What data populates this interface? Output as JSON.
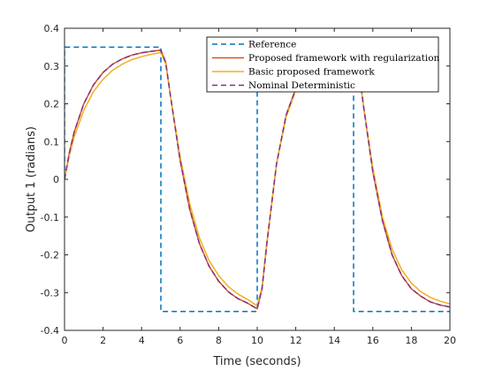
{
  "chart_data": {
    "type": "line",
    "xlabel": "Time (seconds)",
    "ylabel": "Output 1 (radians)",
    "xlim": [
      0,
      20
    ],
    "ylim": [
      -0.4,
      0.4
    ],
    "xticks": [
      0,
      2,
      4,
      6,
      8,
      10,
      12,
      14,
      16,
      18,
      20
    ],
    "xtick_labels": [
      "0",
      "2",
      "4",
      "6",
      "8",
      "10",
      "12",
      "14",
      "16",
      "18",
      "20"
    ],
    "yticks": [
      -0.4,
      -0.3,
      -0.2,
      -0.1,
      0,
      0.1,
      0.2,
      0.3,
      0.4
    ],
    "ytick_labels": [
      "-0.4",
      "-0.3",
      "-0.2",
      "-0.1",
      "0",
      "0.1",
      "0.2",
      "0.3",
      "0.4"
    ],
    "grid": false,
    "legend_position": "top-right",
    "series": [
      {
        "name": "Reference",
        "color": "#0072BD",
        "dash": "dashed",
        "x": [
          0,
          0,
          5,
          5,
          10,
          10,
          15,
          15,
          20
        ],
        "y": [
          0,
          0.35,
          0.35,
          -0.35,
          -0.35,
          0.35,
          0.35,
          -0.35,
          -0.35
        ]
      },
      {
        "name": "Proposed framework with regularization",
        "color": "#D95319",
        "dash": "solid",
        "x": [
          0,
          0.25,
          0.5,
          1,
          1.5,
          2,
          2.5,
          3,
          3.5,
          4,
          4.5,
          5,
          5.25,
          5.5,
          6,
          6.5,
          7,
          7.5,
          8,
          8.5,
          9,
          9.5,
          10,
          10.25,
          10.5,
          11,
          11.5,
          12,
          12.5,
          13,
          13.5,
          14,
          14.5,
          15,
          15.25,
          15.5,
          16,
          16.5,
          17,
          17.5,
          18,
          18.5,
          19,
          19.5,
          20
        ],
        "y": [
          0,
          0.07,
          0.125,
          0.2,
          0.25,
          0.283,
          0.305,
          0.319,
          0.329,
          0.335,
          0.339,
          0.342,
          0.31,
          0.22,
          0.05,
          -0.08,
          -0.17,
          -0.23,
          -0.27,
          -0.298,
          -0.316,
          -0.328,
          -0.343,
          -0.29,
          -0.17,
          0.04,
          0.17,
          0.24,
          0.285,
          0.312,
          0.328,
          0.336,
          0.34,
          0.342,
          0.3,
          0.2,
          0.02,
          -0.11,
          -0.2,
          -0.255,
          -0.29,
          -0.31,
          -0.325,
          -0.333,
          -0.338
        ]
      },
      {
        "name": "Basic proposed framework",
        "color": "#EDB120",
        "dash": "solid",
        "x": [
          0,
          0.25,
          0.5,
          1,
          1.5,
          2,
          2.5,
          3,
          3.5,
          4,
          4.5,
          5,
          5.25,
          5.5,
          6,
          6.5,
          7,
          7.5,
          8,
          8.5,
          9,
          9.5,
          10,
          10.25,
          10.5,
          11,
          11.5,
          12,
          12.5,
          13,
          13.5,
          14,
          14.5,
          15,
          15.25,
          15.5,
          16,
          16.5,
          17,
          17.5,
          18,
          18.5,
          19,
          19.5,
          20
        ],
        "y": [
          0,
          0.062,
          0.112,
          0.183,
          0.232,
          0.265,
          0.289,
          0.305,
          0.317,
          0.325,
          0.331,
          0.336,
          0.305,
          0.22,
          0.06,
          -0.065,
          -0.155,
          -0.215,
          -0.255,
          -0.284,
          -0.304,
          -0.318,
          -0.335,
          -0.285,
          -0.165,
          0.04,
          0.165,
          0.235,
          0.278,
          0.303,
          0.318,
          0.327,
          0.332,
          0.336,
          0.3,
          0.2,
          0.03,
          -0.1,
          -0.185,
          -0.24,
          -0.275,
          -0.298,
          -0.313,
          -0.323,
          -0.33
        ]
      },
      {
        "name": "Nominal Deterministic",
        "color": "#7E2F8E",
        "dash": "dashed",
        "x": [
          0,
          0.25,
          0.5,
          1,
          1.5,
          2,
          2.5,
          3,
          3.5,
          4,
          4.5,
          5,
          5.25,
          5.5,
          6,
          6.5,
          7,
          7.5,
          8,
          8.5,
          9,
          9.5,
          10,
          10.25,
          10.5,
          11,
          11.5,
          12,
          12.5,
          13,
          13.5,
          14,
          14.5,
          15,
          15.25,
          15.5,
          16,
          16.5,
          17,
          17.5,
          18,
          18.5,
          19,
          19.5,
          20
        ],
        "y": [
          0,
          0.07,
          0.125,
          0.2,
          0.25,
          0.283,
          0.305,
          0.319,
          0.329,
          0.335,
          0.339,
          0.342,
          0.31,
          0.22,
          0.05,
          -0.08,
          -0.17,
          -0.23,
          -0.27,
          -0.298,
          -0.316,
          -0.328,
          -0.343,
          -0.29,
          -0.17,
          0.04,
          0.17,
          0.24,
          0.285,
          0.312,
          0.328,
          0.336,
          0.34,
          0.342,
          0.3,
          0.2,
          0.02,
          -0.11,
          -0.2,
          -0.255,
          -0.29,
          -0.31,
          -0.325,
          -0.333,
          -0.338
        ]
      }
    ]
  }
}
